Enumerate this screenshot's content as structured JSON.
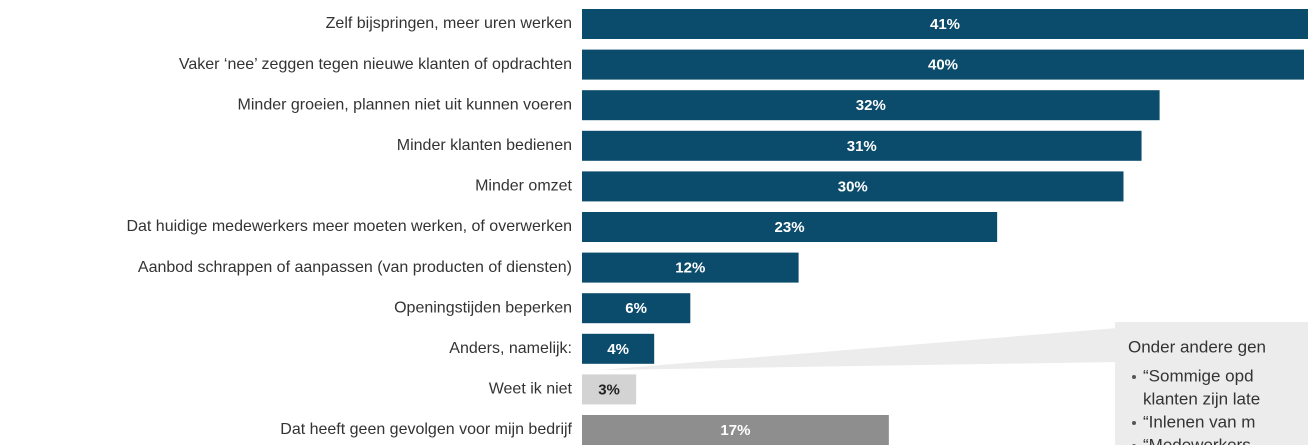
{
  "chart_data": {
    "type": "bar",
    "orientation": "horizontal",
    "categories": [
      "Zelf bijspringen, meer uren werken",
      "Vaker ‘nee’ zeggen tegen nieuwe klanten of opdrachten",
      "Minder groeien, plannen niet uit kunnen voeren",
      "Minder klanten bedienen",
      "Minder omzet",
      "Dat huidige medewerkers meer moeten werken, of overwerken",
      "Aanbod schrappen of aanpassen (van producten of diensten)",
      "Openingstijden beperken",
      "Anders, namelijk:",
      "Weet ik niet",
      "Dat heeft geen gevolgen voor mijn bedrijf"
    ],
    "values": [
      41,
      40,
      32,
      31,
      30,
      23,
      12,
      6,
      4,
      3,
      17
    ],
    "value_labels": [
      "41%",
      "40%",
      "32%",
      "31%",
      "30%",
      "23%",
      "12%",
      "6%",
      "4%",
      "3%",
      "17%"
    ],
    "colors": [
      "#0b4b6b",
      "#0b4b6b",
      "#0b4b6b",
      "#0b4b6b",
      "#0b4b6b",
      "#0b4b6b",
      "#0b4b6b",
      "#0b4b6b",
      "#0b4b6b",
      "#d3d3d3",
      "#8e8e8e"
    ],
    "callout": {
      "title": "Onder andere gen",
      "items": [
        [
          "“Sommige opd",
          "klanten zijn late"
        ],
        [
          "“Inlenen van m"
        ],
        [
          "“Medewerkers"
        ]
      ]
    }
  }
}
